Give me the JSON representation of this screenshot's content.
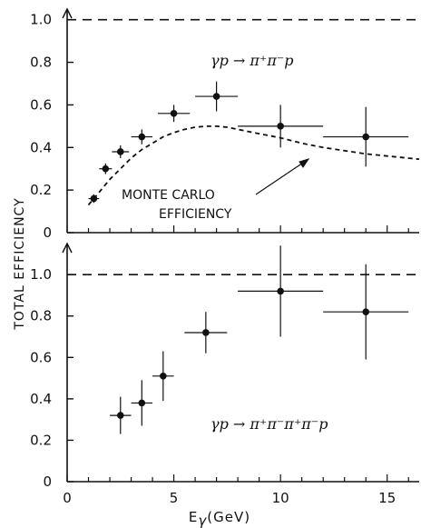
{
  "chart_data": {
    "type": "scatter",
    "xlabel_main": "E",
    "xlabel_sub": "γ",
    "xlabel_unit": "(GeV)",
    "ylabel": "TOTAL EFFICIENCY",
    "x_ticks": [
      "0",
      "5",
      "10",
      "15"
    ],
    "xlim": [
      0,
      16.5
    ],
    "panels": [
      {
        "name": "top",
        "reaction": "γp → π⁺π⁻p",
        "ylim": [
          0,
          1.05
        ],
        "y_ticks": [
          "0",
          "0.2",
          "0.4",
          "0.6",
          "0.8",
          "1.0"
        ],
        "reference_line": 1.0,
        "annotation_lines": [
          "MONTE CARLO",
          "EFFICIENCY"
        ],
        "points": [
          {
            "x": 1.25,
            "y": 0.16,
            "xerr": 0.25,
            "yerr": 0.02
          },
          {
            "x": 1.8,
            "y": 0.3,
            "xerr": 0.3,
            "yerr": 0.025
          },
          {
            "x": 2.5,
            "y": 0.38,
            "xerr": 0.4,
            "yerr": 0.03
          },
          {
            "x": 3.5,
            "y": 0.45,
            "xerr": 0.5,
            "yerr": 0.035
          },
          {
            "x": 5.0,
            "y": 0.56,
            "xerr": 0.75,
            "yerr": 0.04
          },
          {
            "x": 7.0,
            "y": 0.64,
            "xerr": 1.0,
            "yerr": 0.07
          },
          {
            "x": 10.0,
            "y": 0.5,
            "xerr": 2.0,
            "yerr": 0.1
          },
          {
            "x": 14.0,
            "y": 0.45,
            "xerr": 2.0,
            "yerr": 0.14
          }
        ],
        "curve": [
          [
            1.0,
            0.13
          ],
          [
            1.5,
            0.19
          ],
          [
            2.0,
            0.25
          ],
          [
            2.5,
            0.3
          ],
          [
            3.0,
            0.35
          ],
          [
            3.5,
            0.39
          ],
          [
            4.0,
            0.42
          ],
          [
            4.5,
            0.45
          ],
          [
            5.0,
            0.47
          ],
          [
            5.5,
            0.485
          ],
          [
            6.0,
            0.495
          ],
          [
            6.5,
            0.5
          ],
          [
            7.0,
            0.5
          ],
          [
            7.5,
            0.495
          ],
          [
            8.0,
            0.485
          ],
          [
            9.0,
            0.465
          ],
          [
            10.0,
            0.445
          ],
          [
            11.0,
            0.42
          ],
          [
            12.0,
            0.4
          ],
          [
            13.0,
            0.385
          ],
          [
            14.0,
            0.37
          ],
          [
            15.0,
            0.36
          ],
          [
            16.0,
            0.35
          ],
          [
            16.5,
            0.345
          ]
        ]
      },
      {
        "name": "bottom",
        "reaction": "γp → π⁺π⁻π⁺π⁻p",
        "ylim": [
          0,
          1.15
        ],
        "y_ticks": [
          "0",
          "0.2",
          "0.4",
          "0.6",
          "0.8",
          "1.0"
        ],
        "reference_line": 1.0,
        "points": [
          {
            "x": 2.5,
            "y": 0.32,
            "xerr": 0.5,
            "yerr": 0.09
          },
          {
            "x": 3.5,
            "y": 0.38,
            "xerr": 0.5,
            "yerr": 0.11
          },
          {
            "x": 4.5,
            "y": 0.51,
            "xerr": 0.5,
            "yerr": 0.12
          },
          {
            "x": 6.5,
            "y": 0.72,
            "xerr": 1.0,
            "yerr": 0.1
          },
          {
            "x": 10.0,
            "y": 0.92,
            "xerr": 2.0,
            "yerr": 0.22
          },
          {
            "x": 14.0,
            "y": 0.82,
            "xerr": 2.0,
            "yerr": 0.23
          }
        ]
      }
    ]
  }
}
